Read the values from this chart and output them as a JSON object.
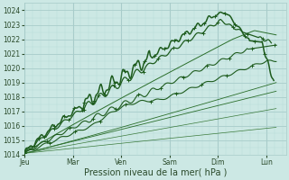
{
  "xlabel": "Pression niveau de la mer( hPa )",
  "ylim": [
    1014,
    1024.5
  ],
  "ytick_min": 1014,
  "ytick_max": 1024,
  "days": [
    "Jeu",
    "Mar",
    "Ven",
    "Sam",
    "Dim",
    "Lun"
  ],
  "day_positions": [
    0,
    1,
    2,
    3,
    4,
    5
  ],
  "xlim": [
    0,
    5.4
  ],
  "background_color": "#cce8e4",
  "grid_major_color": "#a8ccca",
  "grid_minor_color": "#b8dcd8",
  "line_dark": "#1e5c1e",
  "line_mid": "#2a6e2a",
  "line_light": "#3a7a3a",
  "text_color": "#2a4a2a",
  "tick_label_size": 5.5,
  "xlabel_size": 7
}
